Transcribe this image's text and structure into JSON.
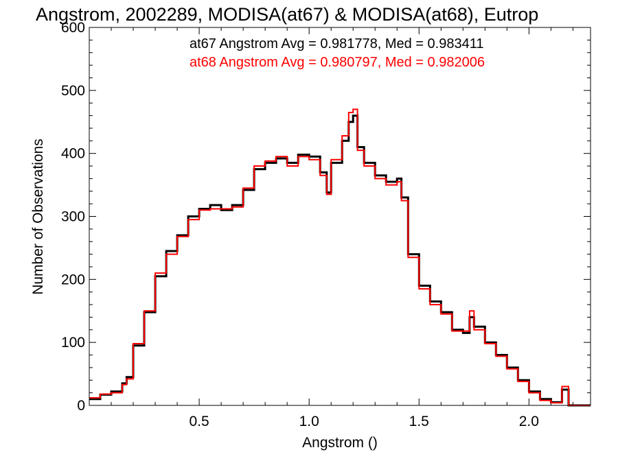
{
  "chart_data": {
    "type": "line",
    "step": true,
    "title": "Angstrom, 2002289, MODISA(at67) & MODISA(at68), Eutrop",
    "xlabel": "Angstrom ()",
    "ylabel": "Number of Observations",
    "xlim": [
      0.0,
      2.28
    ],
    "ylim": [
      0,
      600
    ],
    "xticks": [
      0.5,
      1.0,
      1.5,
      2.0
    ],
    "xtick_labels": [
      "0.5",
      "1.0",
      "1.5",
      "2.0"
    ],
    "yticks": [
      0,
      100,
      200,
      300,
      400,
      500,
      600
    ],
    "ytick_labels": [
      "0",
      "100",
      "200",
      "300",
      "400",
      "500",
      "600"
    ],
    "grid": false,
    "annotations": [
      {
        "text": "at67 Angstrom Avg = 0.981778, Med = 0.983411",
        "color": "#000000"
      },
      {
        "text": "at68 Angstrom Avg = 0.980797, Med = 0.982006",
        "color": "#ff0000"
      }
    ],
    "series": [
      {
        "color": "#000000",
        "x": [
          0.0,
          0.05,
          0.1,
          0.15,
          0.17,
          0.2,
          0.25,
          0.3,
          0.35,
          0.4,
          0.45,
          0.5,
          0.55,
          0.6,
          0.65,
          0.7,
          0.75,
          0.8,
          0.85,
          0.9,
          0.95,
          1.0,
          1.05,
          1.08,
          1.1,
          1.15,
          1.18,
          1.2,
          1.22,
          1.25,
          1.3,
          1.35,
          1.4,
          1.42,
          1.45,
          1.5,
          1.55,
          1.6,
          1.65,
          1.7,
          1.73,
          1.75,
          1.8,
          1.85,
          1.9,
          1.95,
          2.0,
          2.05,
          2.1,
          2.14,
          2.15,
          2.18,
          2.28
        ],
        "y": [
          10,
          17,
          22,
          35,
          45,
          95,
          148,
          205,
          245,
          270,
          300,
          312,
          318,
          310,
          318,
          342,
          375,
          385,
          392,
          385,
          398,
          395,
          370,
          338,
          385,
          420,
          450,
          460,
          410,
          385,
          365,
          355,
          360,
          330,
          240,
          190,
          165,
          148,
          120,
          115,
          140,
          125,
          100,
          80,
          60,
          40,
          22,
          10,
          5,
          5,
          25,
          0,
          0
        ]
      },
      {
        "color": "#ff0000",
        "x": [
          0.0,
          0.05,
          0.1,
          0.15,
          0.17,
          0.2,
          0.25,
          0.3,
          0.35,
          0.4,
          0.45,
          0.5,
          0.55,
          0.6,
          0.65,
          0.7,
          0.75,
          0.8,
          0.85,
          0.9,
          0.95,
          1.0,
          1.05,
          1.08,
          1.1,
          1.15,
          1.18,
          1.2,
          1.22,
          1.25,
          1.3,
          1.35,
          1.4,
          1.42,
          1.45,
          1.5,
          1.55,
          1.6,
          1.65,
          1.7,
          1.73,
          1.75,
          1.8,
          1.85,
          1.9,
          1.95,
          2.0,
          2.05,
          2.1,
          2.14,
          2.15,
          2.18,
          2.28
        ],
        "y": [
          12,
          18,
          20,
          33,
          42,
          98,
          150,
          210,
          240,
          268,
          295,
          310,
          312,
          312,
          315,
          345,
          380,
          388,
          395,
          380,
          395,
          390,
          365,
          335,
          390,
          428,
          465,
          470,
          405,
          380,
          360,
          350,
          355,
          325,
          235,
          185,
          160,
          145,
          118,
          118,
          150,
          120,
          98,
          78,
          58,
          38,
          20,
          8,
          4,
          4,
          30,
          0,
          0
        ]
      }
    ]
  }
}
